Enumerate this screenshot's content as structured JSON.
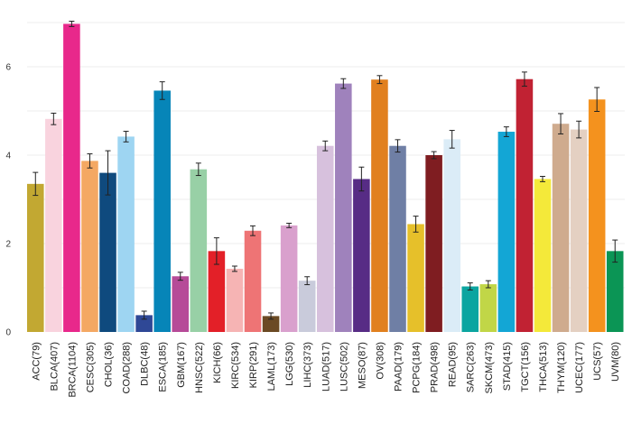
{
  "chart_data": {
    "type": "bar",
    "title": "",
    "xlabel": "",
    "ylabel": "",
    "ylim": [
      0,
      7.2
    ],
    "yticks": [
      0,
      2,
      4,
      6
    ],
    "grid": true,
    "legend": "none",
    "categories": [
      "ACC(79)",
      "BLCA(407)",
      "BRCA(1104)",
      "CESC(305)",
      "CHOL(36)",
      "COAD(288)",
      "DLBC(48)",
      "ESCA(185)",
      "GBM(167)",
      "HNSC(522)",
      "KICH(66)",
      "KIRC(534)",
      "KIRP(291)",
      "LAML(173)",
      "LGG(530)",
      "LIHC(373)",
      "LUAD(517)",
      "LUSC(502)",
      "MESO(87)",
      "OV(308)",
      "PAAD(179)",
      "PCPG(184)",
      "PRAD(498)",
      "READ(95)",
      "SARC(263)",
      "SKCM(473)",
      "STAD(415)",
      "TGCT(156)",
      "THCA(513)",
      "THYM(120)",
      "UCEC(177)",
      "UCS(57)",
      "UVM(80)"
    ],
    "values": [
      3.35,
      4.82,
      6.97,
      3.87,
      3.6,
      4.42,
      0.38,
      5.46,
      1.26,
      3.68,
      1.83,
      1.43,
      2.29,
      0.36,
      2.41,
      1.16,
      4.21,
      5.62,
      3.46,
      5.71,
      4.21,
      2.44,
      4.0,
      4.36,
      1.03,
      1.08,
      4.53,
      5.72,
      3.46,
      4.71,
      4.58,
      5.26,
      1.83
    ],
    "errors": [
      0.26,
      0.13,
      0.06,
      0.16,
      0.5,
      0.12,
      0.09,
      0.2,
      0.09,
      0.14,
      0.3,
      0.06,
      0.11,
      0.07,
      0.05,
      0.09,
      0.11,
      0.11,
      0.27,
      0.09,
      0.14,
      0.18,
      0.08,
      0.2,
      0.08,
      0.08,
      0.11,
      0.16,
      0.06,
      0.23,
      0.19,
      0.27,
      0.25
    ],
    "colors": [
      "#c2a832",
      "#f9d3de",
      "#e8288b",
      "#f4a863",
      "#0f4a7e",
      "#9ed5f2",
      "#2f4896",
      "#0685b8",
      "#b64b98",
      "#98d0a6",
      "#e32028",
      "#f6b4b4",
      "#ee7475",
      "#6b4a24",
      "#d9a0cd",
      "#c9cbdb",
      "#d7c1dd",
      "#9f82bc",
      "#572c85",
      "#e1801f",
      "#6f7fa5",
      "#e6c02a",
      "#7f1d21",
      "#dbecf7",
      "#0ba5a0",
      "#c1d647",
      "#13a6d5",
      "#c12233",
      "#f4e93a",
      "#cfab8e",
      "#e4d0c2",
      "#f4921e",
      "#0b9555"
    ]
  }
}
